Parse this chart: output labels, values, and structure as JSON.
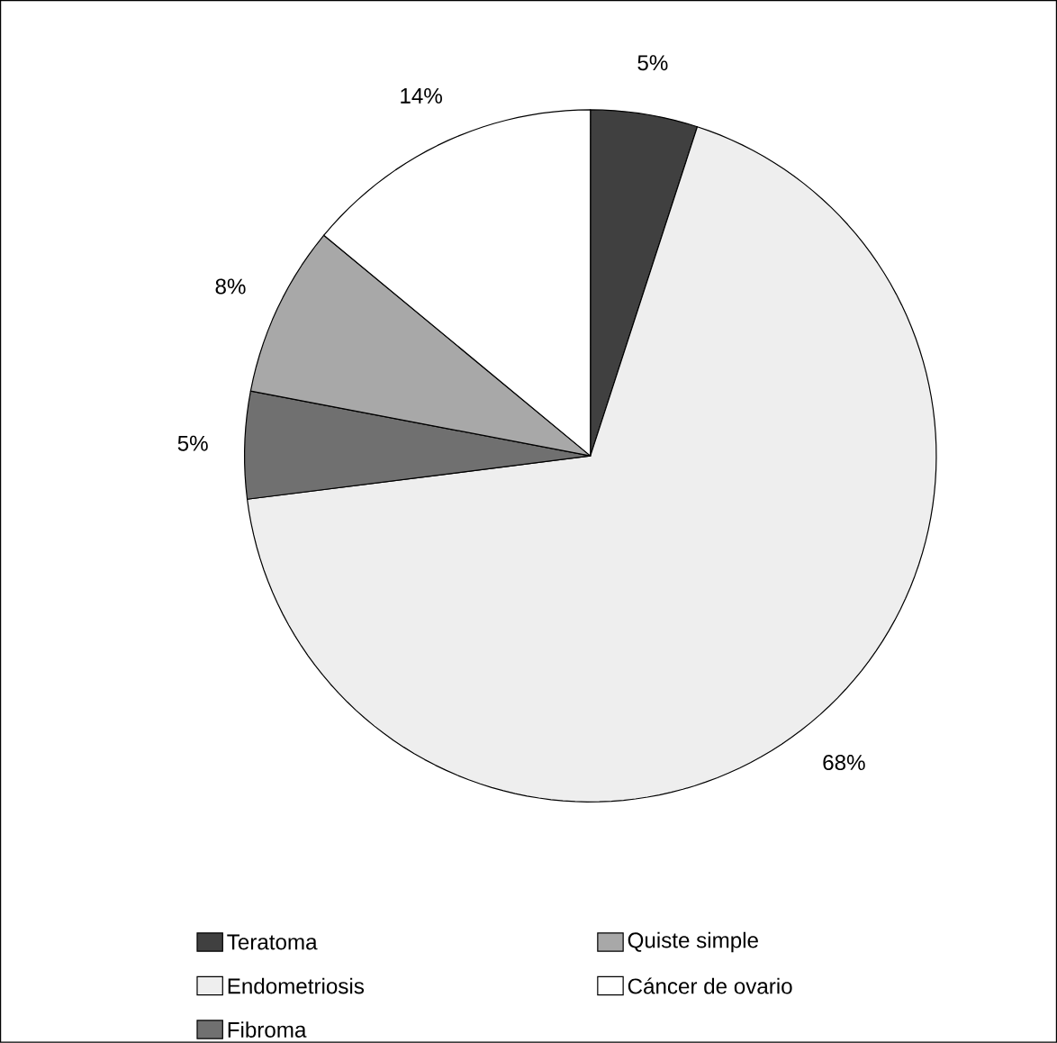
{
  "chart_data": {
    "type": "pie",
    "categories": [
      "Teratoma",
      "Endometriosis",
      "Fibroma",
      "Quiste simple",
      "Cáncer de ovario"
    ],
    "values": [
      5,
      68,
      5,
      8,
      14
    ],
    "colors": [
      "#404040",
      "#eeeeee",
      "#707070",
      "#a8a8a8",
      "#ffffff"
    ],
    "value_labels": [
      "5%",
      "68%",
      "5%",
      "8%",
      "14%"
    ],
    "legend": "bottom"
  }
}
